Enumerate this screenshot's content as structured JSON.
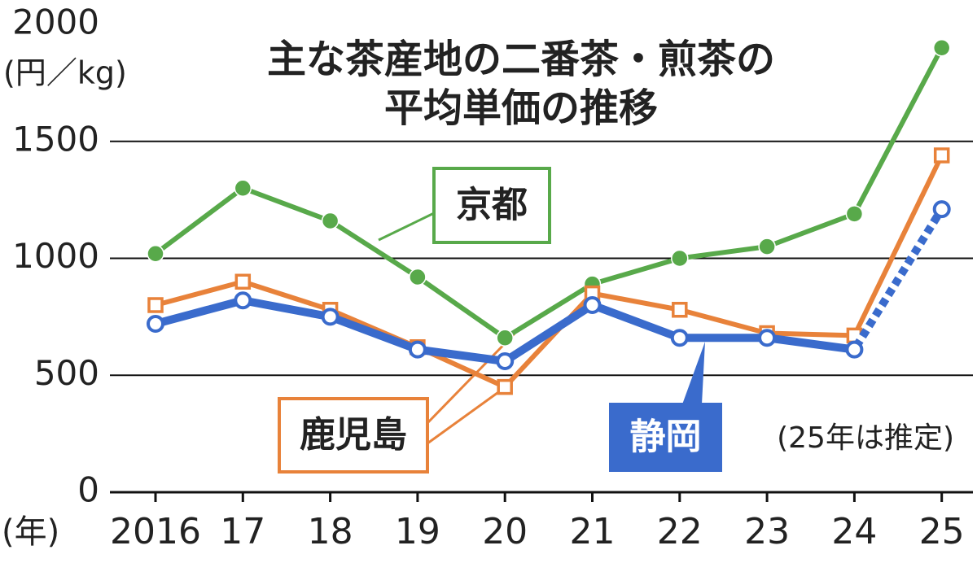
{
  "chart_data": {
    "type": "line",
    "title": [
      "主な茶産地の二番茶・煎茶の",
      "平均単価の推移"
    ],
    "y_label": "(円／kg)",
    "x_label": "(年)",
    "note": "(25年は推定)",
    "categories": [
      "2016",
      "17",
      "18",
      "19",
      "20",
      "21",
      "22",
      "23",
      "24",
      "25"
    ],
    "series": [
      {
        "name": "京都",
        "color": "#58a94a",
        "marker": "filled-circle",
        "values": [
          1020,
          1300,
          1160,
          920,
          660,
          890,
          1000,
          1050,
          1190,
          1900
        ]
      },
      {
        "name": "鹿児島",
        "color": "#e8823a",
        "marker": "hollow-square",
        "values": [
          800,
          900,
          780,
          620,
          450,
          850,
          780,
          680,
          670,
          1440
        ]
      },
      {
        "name": "静岡",
        "color": "#3a6bcc",
        "marker": "hollow-circle",
        "dashed_last_segment": true,
        "values": [
          720,
          820,
          750,
          610,
          560,
          800,
          660,
          660,
          610,
          1210
        ]
      }
    ],
    "ylim": [
      0,
      2000
    ],
    "yticks": [
      0,
      500,
      1000,
      1500,
      2000
    ],
    "grid": true
  }
}
